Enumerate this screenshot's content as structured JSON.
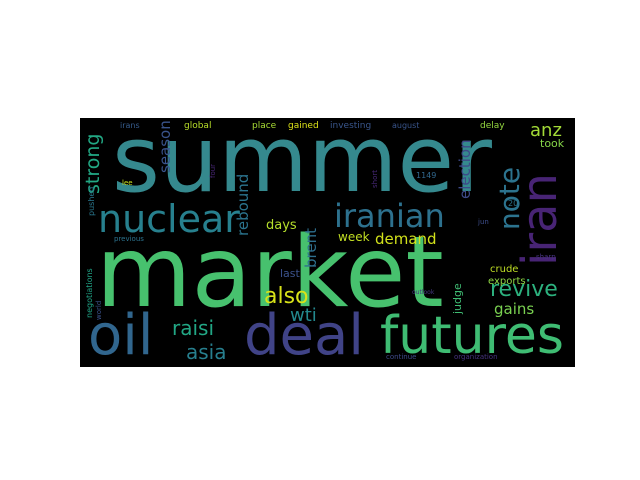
{
  "word_cloud": {
    "words": [
      {
        "text": "summer",
        "color": "#35898e"
      },
      {
        "text": "market",
        "color": "#47c16e"
      },
      {
        "text": "deal",
        "color": "#404387"
      },
      {
        "text": "oil",
        "color": "#31668e"
      },
      {
        "text": "futures",
        "color": "#3fbc73"
      },
      {
        "text": "nuclear",
        "color": "#27808e"
      },
      {
        "text": "iranian",
        "color": "#2d718e"
      },
      {
        "text": "iran",
        "color": "#482475"
      },
      {
        "text": "note",
        "color": "#2c738e"
      },
      {
        "text": "revive",
        "color": "#2cb17e"
      },
      {
        "text": "raisi",
        "color": "#22a785"
      },
      {
        "text": "also",
        "color": "#d8e219"
      },
      {
        "text": "asia",
        "color": "#277f8e"
      },
      {
        "text": "wti",
        "color": "#23898e"
      },
      {
        "text": "strong",
        "color": "#22a884"
      },
      {
        "text": "anz",
        "color": "#a2da37"
      },
      {
        "text": "demand",
        "color": "#d2e21b"
      },
      {
        "text": "brent",
        "color": "#2e6f8e"
      },
      {
        "text": "election",
        "color": "#3e4a89"
      },
      {
        "text": "rebound",
        "color": "#2b748e"
      },
      {
        "text": "season",
        "color": "#3a548c"
      },
      {
        "text": "gains",
        "color": "#7ad151"
      },
      {
        "text": "days",
        "color": "#b5de2b"
      },
      {
        "text": "week",
        "color": "#c2df23"
      },
      {
        "text": "judge",
        "color": "#3fbc73"
      },
      {
        "text": "last",
        "color": "#3b528b"
      },
      {
        "text": "took",
        "color": "#86d549"
      },
      {
        "text": "exports",
        "color": "#8fd744"
      },
      {
        "text": "crude",
        "color": "#c0df25"
      },
      {
        "text": "delay",
        "color": "#95d840"
      },
      {
        "text": "global",
        "color": "#b8de29"
      },
      {
        "text": "place",
        "color": "#a8db34"
      },
      {
        "text": "gained",
        "color": "#dde318"
      },
      {
        "text": "investing",
        "color": "#39568c"
      },
      {
        "text": "august",
        "color": "#39558c"
      },
      {
        "text": "irans",
        "color": "#365c8d"
      },
      {
        "text": "four",
        "color": "#482777"
      },
      {
        "text": "1149",
        "color": "#31688e"
      },
      {
        "text": "lee",
        "color": "#c8e020"
      },
      {
        "text": "pushed",
        "color": "#2a778e"
      },
      {
        "text": "negotiations",
        "color": "#20a386"
      },
      {
        "text": "previous",
        "color": "#2c738e"
      },
      {
        "text": "world",
        "color": "#3b528b"
      },
      {
        "text": "short",
        "color": "#482878"
      },
      {
        "text": "jun",
        "color": "#3d4d8a"
      },
      {
        "text": "20",
        "color": "#2b758e"
      },
      {
        "text": "sharp",
        "color": "#46327e"
      },
      {
        "text": "outlook",
        "color": "#453781"
      },
      {
        "text": "continue",
        "color": "#3e4a89"
      },
      {
        "text": "organization",
        "color": "#46337f"
      }
    ]
  }
}
